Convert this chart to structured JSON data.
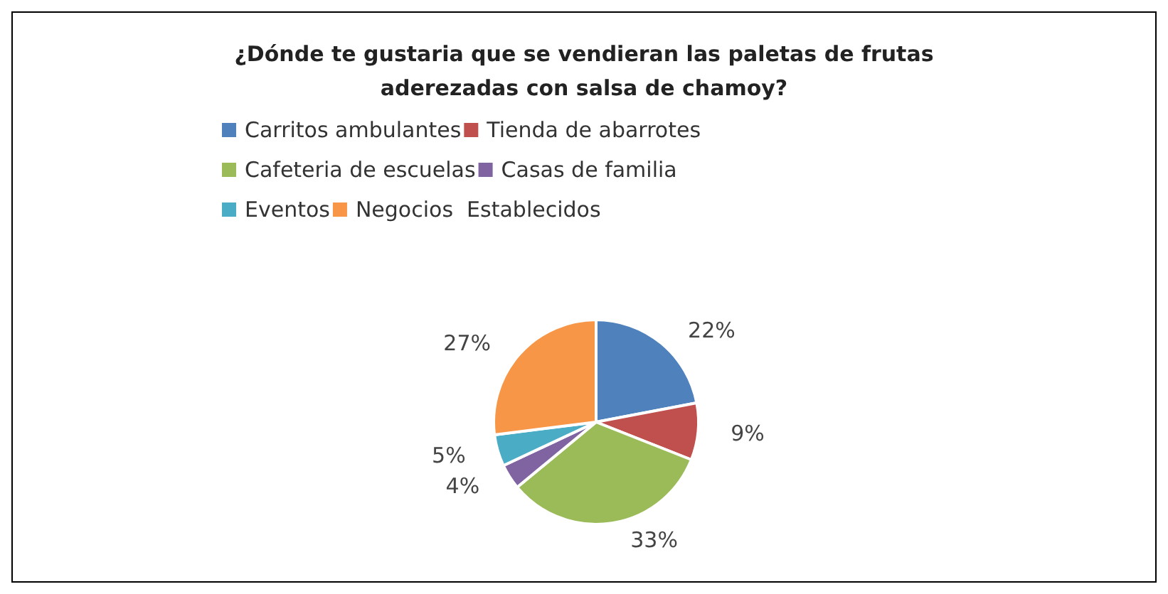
{
  "chart_data": {
    "type": "pie",
    "title": "¿Dónde te gustaria que se vendieran las paletas de frutas\naderezadas con salsa de chamoy?",
    "categories": [
      "Carritos ambulantes",
      "Tienda de abarrotes",
      "Cafeteria de escuelas",
      "Casas de familia",
      "Eventos",
      "Negocios  Establecidos"
    ],
    "values": [
      22,
      9,
      33,
      4,
      5,
      27
    ],
    "colors": [
      "#4f81bd",
      "#c0504d",
      "#9bbb59",
      "#8064a2",
      "#4bacc6",
      "#f79646"
    ],
    "value_labels": [
      "22%",
      "9%",
      "33%",
      "4%",
      "5%",
      "27%"
    ],
    "legend": "top"
  }
}
